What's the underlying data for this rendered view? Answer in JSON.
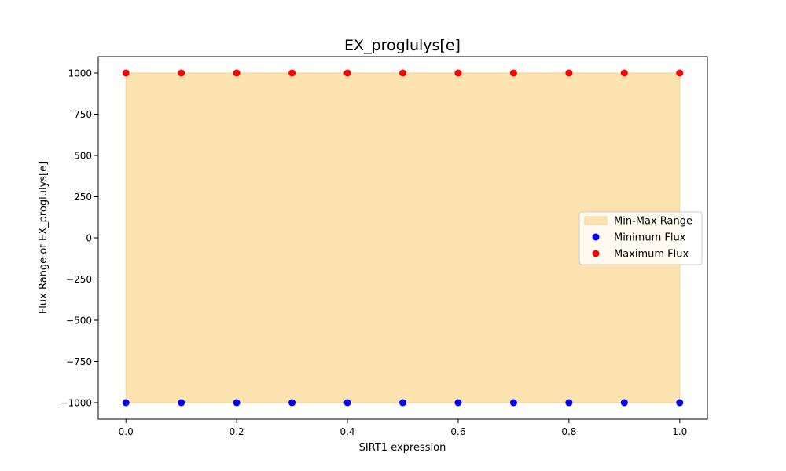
{
  "chart_data": {
    "type": "scatter",
    "title": "EX_proglulys[e]",
    "xlabel": "SIRT1 expression",
    "ylabel": "Flux Range of EX_proglulys[e]",
    "xlim": [
      -0.05,
      1.05
    ],
    "ylim": [
      -1100,
      1100
    ],
    "xticks": [
      0.0,
      0.2,
      0.4,
      0.6,
      0.8,
      1.0
    ],
    "xtick_labels": [
      "0.0",
      "0.2",
      "0.4",
      "0.6",
      "0.8",
      "1.0"
    ],
    "yticks": [
      -1000,
      -750,
      -500,
      -250,
      0,
      250,
      500,
      750,
      1000
    ],
    "ytick_labels": [
      "−1000",
      "−750",
      "−500",
      "−250",
      "0",
      "250",
      "500",
      "750",
      "1000"
    ],
    "grid": false,
    "legend_position": "center-right",
    "x": [
      0.0,
      0.1,
      0.2,
      0.3,
      0.4,
      0.5,
      0.6,
      0.7,
      0.8,
      0.9,
      1.0
    ],
    "series": [
      {
        "name": "Min-Max Range",
        "kind": "fill_between",
        "color": "#fde3b0",
        "edge_color": "#fbd08a",
        "lower": [
          -1000,
          -1000,
          -1000,
          -1000,
          -1000,
          -1000,
          -1000,
          -1000,
          -1000,
          -1000,
          -1000
        ],
        "upper": [
          1000,
          1000,
          1000,
          1000,
          1000,
          1000,
          1000,
          1000,
          1000,
          1000,
          1000
        ]
      },
      {
        "name": "Minimum Flux",
        "kind": "scatter",
        "color": "#0000ff",
        "values": [
          -1000,
          -1000,
          -1000,
          -1000,
          -1000,
          -1000,
          -1000,
          -1000,
          -1000,
          -1000,
          -1000
        ]
      },
      {
        "name": "Maximum Flux",
        "kind": "scatter",
        "color": "#ff0000",
        "values": [
          1000,
          1000,
          1000,
          1000,
          1000,
          1000,
          1000,
          1000,
          1000,
          1000,
          1000
        ]
      }
    ]
  }
}
